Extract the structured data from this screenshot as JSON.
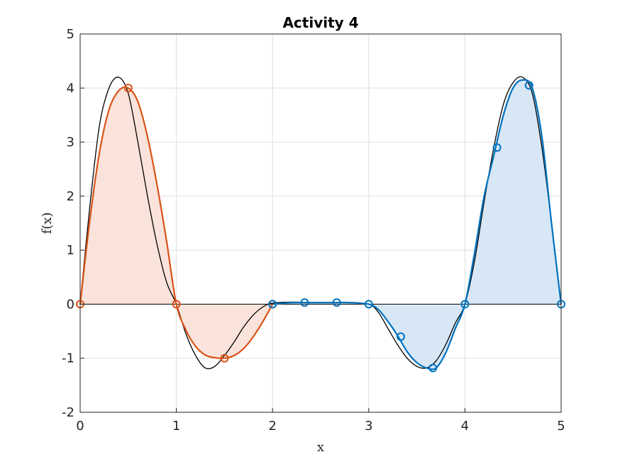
{
  "chart_data": {
    "type": "line",
    "title": "Activity 4",
    "xlabel": "x",
    "ylabel": "f(x)",
    "xlim": [
      0,
      5
    ],
    "ylim": [
      -2,
      5
    ],
    "xticks": [
      "0",
      "1",
      "2",
      "3",
      "4",
      "5"
    ],
    "yticks": [
      "-2",
      "-1",
      "0",
      "1",
      "2",
      "3",
      "4",
      "5"
    ],
    "grid": true,
    "legend": "none",
    "series": [
      {
        "role": "true-function",
        "color": "#000000",
        "x": [
          0,
          0.1,
          0.2,
          0.3,
          0.4,
          0.5,
          0.6,
          0.7,
          0.8,
          0.9,
          1.0,
          1.1,
          1.2,
          1.3,
          1.4,
          1.5,
          1.6,
          1.7,
          1.8,
          1.9,
          2.0,
          2.2,
          2.4,
          2.6,
          2.8,
          3.0,
          3.1,
          3.2,
          3.3,
          3.4,
          3.5,
          3.6,
          3.7,
          3.8,
          3.9,
          4.0,
          4.1,
          4.2,
          4.3,
          4.4,
          4.5,
          4.6,
          4.7,
          4.8,
          4.9,
          5.0
        ],
        "y": [
          0,
          1.8,
          3.3,
          4.0,
          4.2,
          3.9,
          3.0,
          2.0,
          1.1,
          0.4,
          0,
          -0.55,
          -0.95,
          -1.18,
          -1.15,
          -0.95,
          -0.7,
          -0.42,
          -0.2,
          -0.05,
          0.02,
          0.04,
          0.03,
          0.03,
          0.03,
          0.0,
          -0.15,
          -0.45,
          -0.75,
          -1.0,
          -1.15,
          -1.18,
          -1.05,
          -0.75,
          -0.35,
          0.0,
          0.8,
          1.9,
          2.9,
          3.7,
          4.1,
          4.2,
          3.9,
          2.9,
          1.5,
          0
        ]
      },
      {
        "role": "interpolant-segment-1",
        "color": "#D95319",
        "fill": "#F9E3DA",
        "x": [
          0,
          0.1,
          0.2,
          0.3,
          0.4,
          0.5,
          0.6,
          0.7,
          0.8,
          0.9,
          1.0,
          1.1,
          1.2,
          1.3,
          1.4,
          1.5,
          1.6,
          1.7,
          1.8,
          1.9,
          2.0
        ],
        "y": [
          0,
          1.55,
          2.8,
          3.6,
          3.95,
          4.0,
          3.75,
          3.1,
          2.2,
          1.15,
          0,
          -0.48,
          -0.78,
          -0.94,
          -0.99,
          -1.0,
          -0.95,
          -0.82,
          -0.6,
          -0.32,
          0
        ],
        "markers": {
          "x": [
            0,
            0.5,
            1.0,
            1.5,
            2.0
          ],
          "y": [
            0,
            4.0,
            0,
            -1.0,
            0
          ]
        }
      },
      {
        "role": "interpolant-segment-2",
        "color": "#0072BD",
        "fill": "#D7E7F6",
        "x": [
          2.0,
          2.2,
          2.4,
          2.6,
          2.8,
          3.0,
          3.1,
          3.2,
          3.3,
          3.4,
          3.5,
          3.6,
          3.7,
          3.8,
          3.9,
          4.0,
          4.1,
          4.2,
          4.3,
          4.4,
          4.5,
          4.6,
          4.7,
          4.8,
          4.9,
          5.0
        ],
        "y": [
          0,
          0.03,
          0.03,
          0.03,
          0.03,
          0,
          -0.1,
          -0.32,
          -0.58,
          -0.88,
          -1.08,
          -1.18,
          -1.18,
          -0.9,
          -0.45,
          0,
          0.95,
          2.0,
          2.75,
          3.5,
          4.0,
          4.15,
          4.0,
          3.1,
          1.5,
          0
        ],
        "markers": {
          "x": [
            2.0,
            2.333,
            2.667,
            3.0,
            3.333,
            3.667,
            4.0,
            4.333,
            4.667,
            5.0
          ],
          "y": [
            0,
            0.03,
            0.03,
            0,
            -0.6,
            -1.18,
            0,
            2.9,
            4.05,
            0
          ]
        }
      }
    ]
  }
}
